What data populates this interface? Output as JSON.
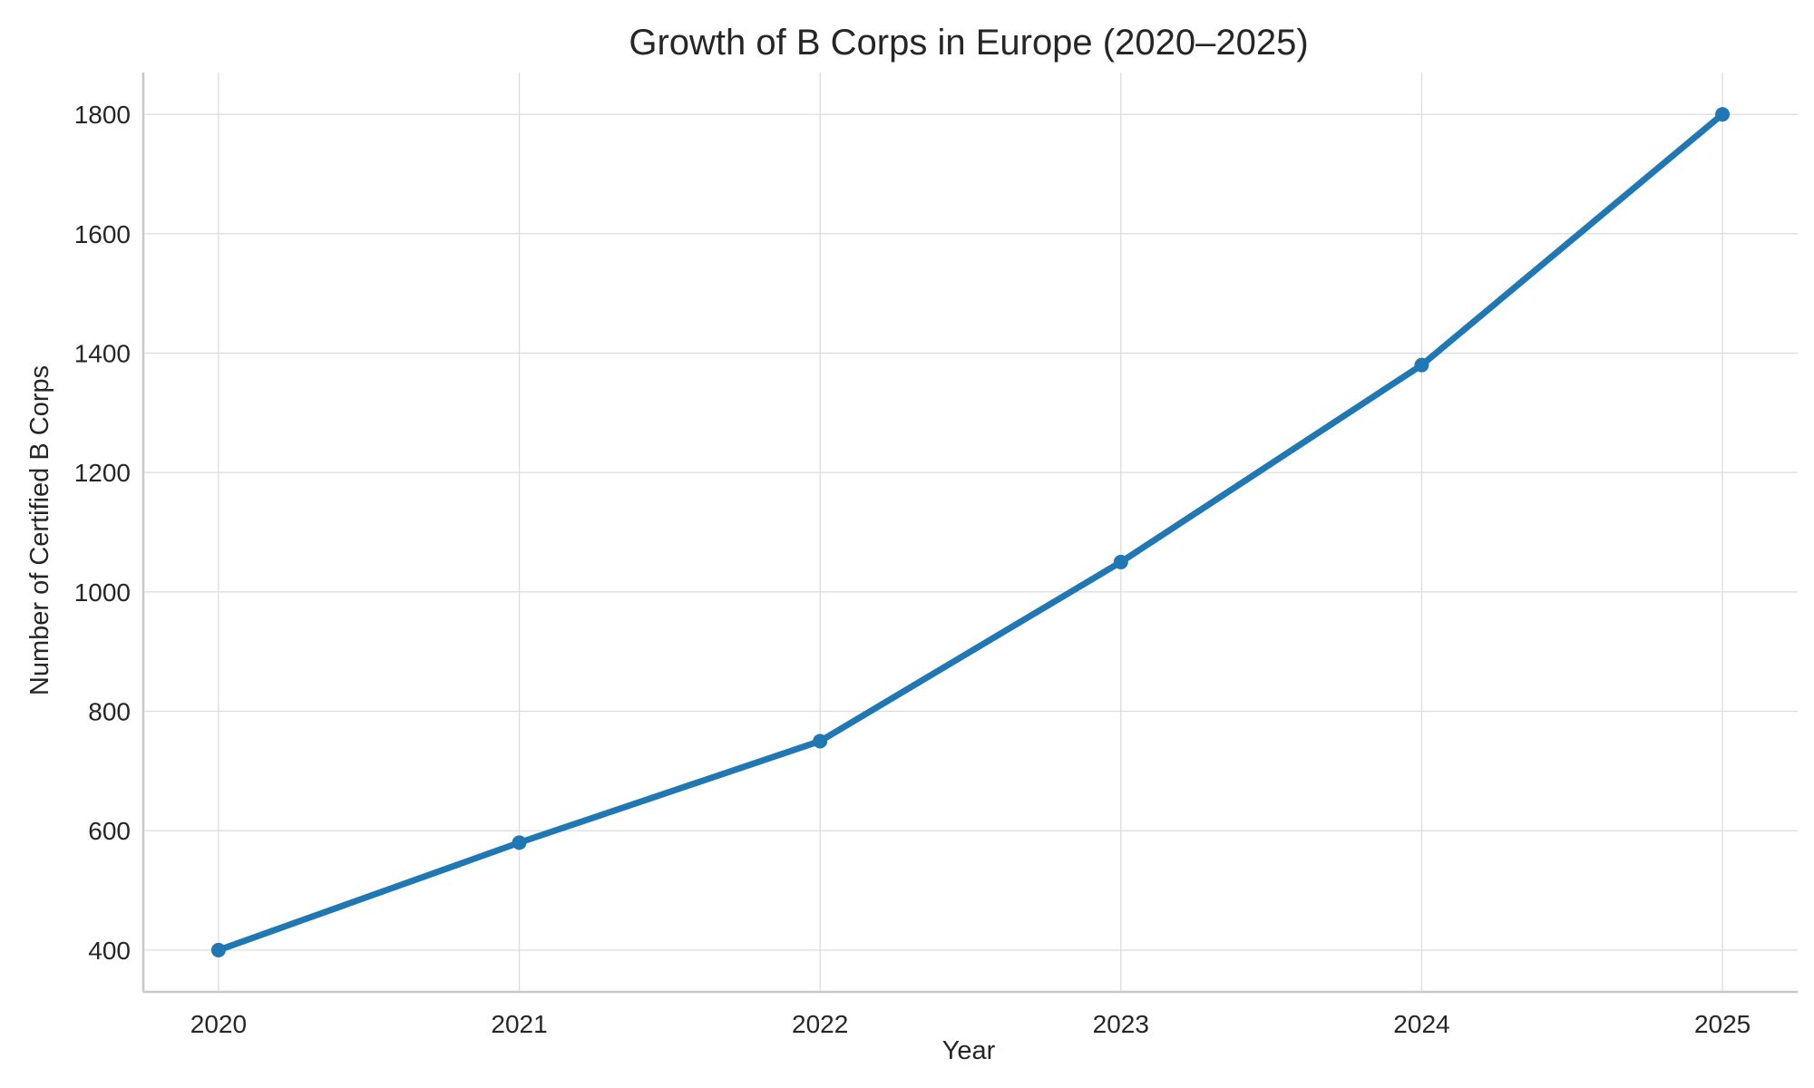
{
  "chart_data": {
    "type": "line",
    "title": "Growth of B Corps in Europe (2020–2025)",
    "xlabel": "Year",
    "ylabel": "Number of Certified B Corps",
    "x": [
      2020,
      2021,
      2022,
      2023,
      2024,
      2025
    ],
    "x_tick_labels": [
      "2020",
      "2021",
      "2022",
      "2023",
      "2024",
      "2025"
    ],
    "xlim": [
      2019.75,
      2025.25
    ],
    "y_ticks": [
      400,
      600,
      800,
      1000,
      1200,
      1400,
      1600,
      1800
    ],
    "y_tick_labels": [
      "400",
      "600",
      "800",
      "1000",
      "1200",
      "1400",
      "1600",
      "1800"
    ],
    "ylim": [
      330,
      1870
    ],
    "series": [
      {
        "values": [
          400,
          580,
          750,
          1050,
          1380,
          1800
        ],
        "color": "#1f77b4",
        "marker": "circle"
      }
    ],
    "grid": true,
    "legend": false
  }
}
